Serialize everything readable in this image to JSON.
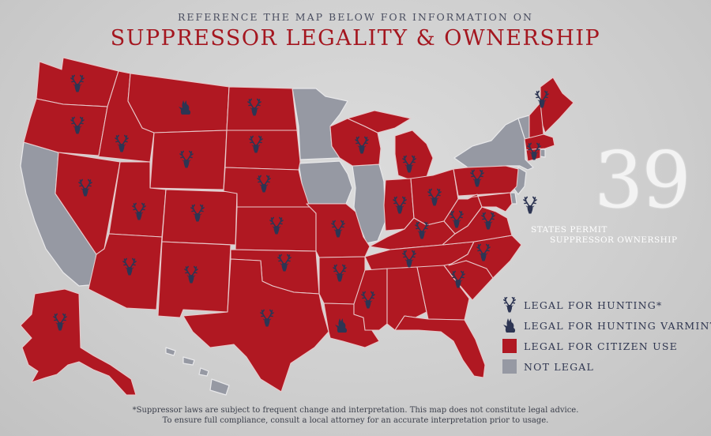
{
  "header": {
    "subtitle": "REFERENCE THE MAP BELOW FOR INFORMATION ON",
    "title": "SUPPRESSOR LEGALITY & OWNERSHIP"
  },
  "stat": {
    "number": "39",
    "line1": "STATES PERMIT",
    "line2": "SUPPRESSOR OWNERSHIP"
  },
  "legend": {
    "items": [
      {
        "icon": "deer-icon",
        "label": "LEGAL FOR HUNTING*"
      },
      {
        "icon": "coyote-icon",
        "label": "LEGAL FOR HUNTING VARMINT"
      },
      {
        "icon": "red-swatch",
        "label": "LEGAL FOR CITIZEN USE"
      },
      {
        "icon": "gray-swatch",
        "label": "NOT LEGAL"
      }
    ]
  },
  "footnote": {
    "line1": "*Suppressor laws are subject to frequent change and interpretation. This map does not constitute legal advice.",
    "line2": "To ensure full compliance, consult a local attorney for an accurate interpretation prior to usage."
  },
  "colors": {
    "legal": "#b01822",
    "not_legal": "#9699a3",
    "icon": "#2d3553",
    "title": "#a4161f"
  }
}
